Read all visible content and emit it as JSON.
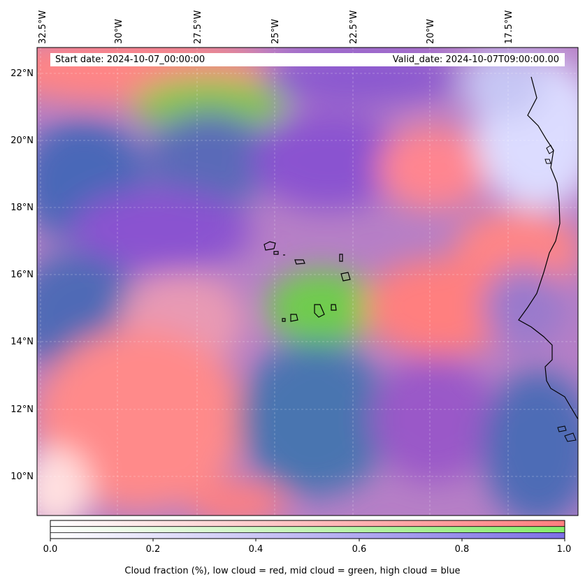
{
  "map": {
    "start_date": "Start date: 2024-10-07_00:00:00",
    "valid_date": "Valid_date: 2024-10-07T09:00:00.00",
    "lon_labels": [
      "32.5°W",
      "30°W",
      "27.5°W",
      "25°W",
      "22.5°W",
      "20°W",
      "17.5°W"
    ],
    "lat_labels": [
      "22°N",
      "20°N",
      "18°N",
      "16°N",
      "14°N",
      "12°N",
      "10°N"
    ],
    "colors": {
      "low_cloud": "#ff7f7f",
      "mid_cloud": "#7fdc3a",
      "high_cloud": "#7a5ad0",
      "clear": "#ffffff",
      "coast": "#000000"
    }
  },
  "colorbar": {
    "ticks": [
      "0.0",
      "0.2",
      "0.4",
      "0.6",
      "0.8",
      "1.0"
    ],
    "label": "Cloud fraction (%), low cloud = red, mid cloud = green, high cloud = blue"
  }
}
